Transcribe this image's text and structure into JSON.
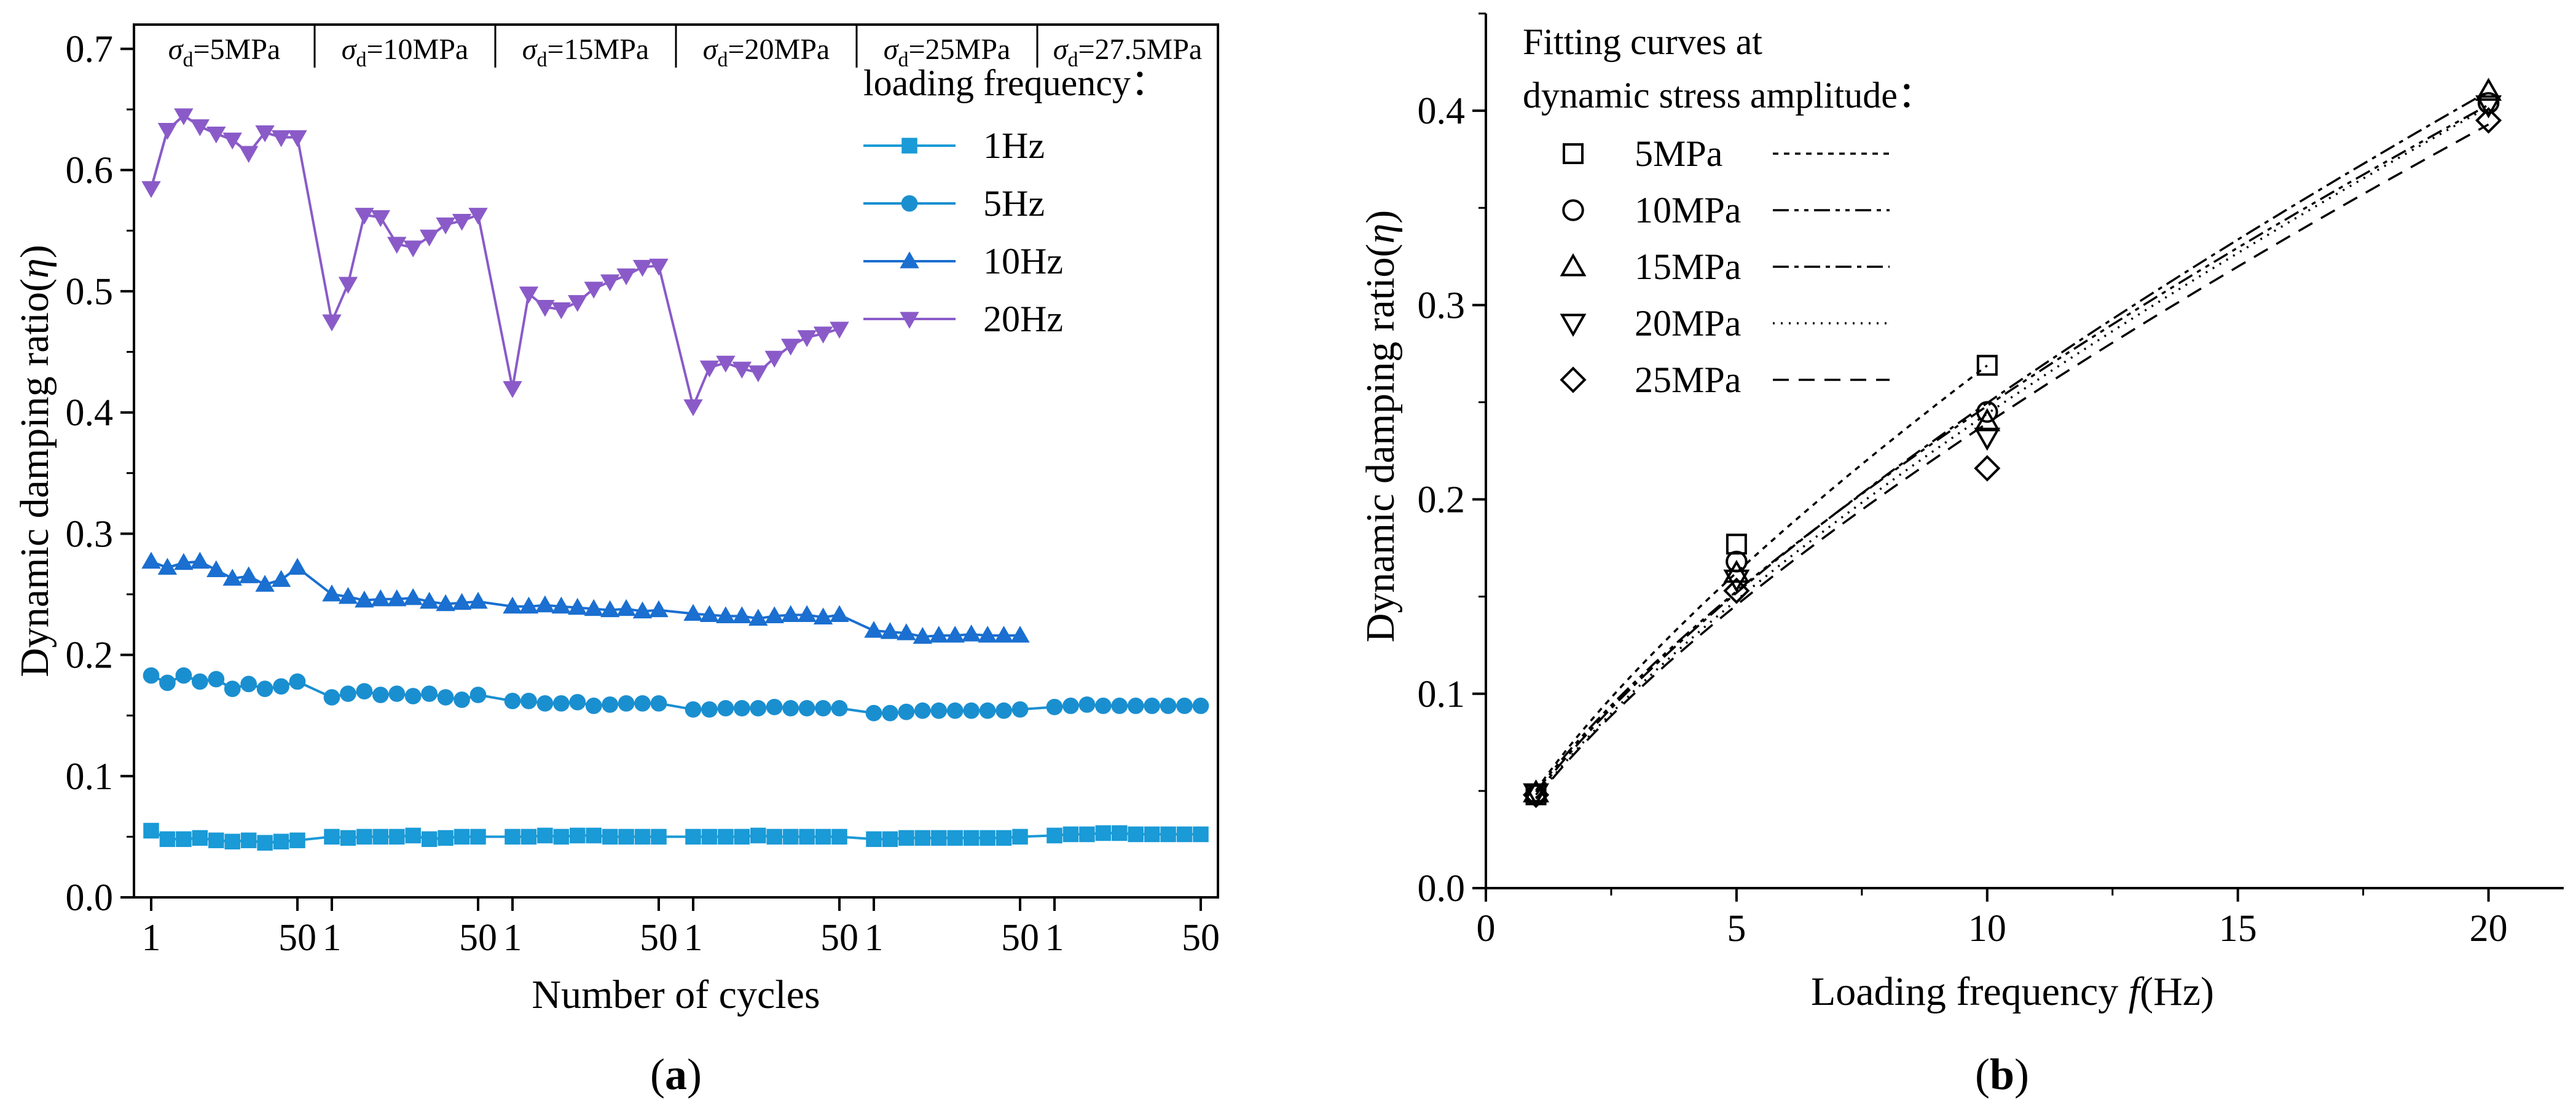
{
  "chart_data": [
    {
      "type": "line",
      "panel_label": "a",
      "xlabel": "Number of cycles",
      "ylabel": "Dynamic damping ratio(",
      "ylabel_symbol": "η",
      "ylabel_close": ")",
      "ylim": [
        0.0,
        0.72
      ],
      "y_ticks": [
        "0.0",
        "0.1",
        "0.2",
        "0.3",
        "0.4",
        "0.5",
        "0.6",
        "0.7"
      ],
      "grid": false,
      "legend_title": "loading frequency：",
      "legend_position": "top-right",
      "stages": [
        {
          "sym": "σ",
          "sub": "d",
          "rest": "=5MPa",
          "tick_start": "1",
          "tick_end": "50"
        },
        {
          "sym": "σ",
          "sub": "d",
          "rest": "=10MPa",
          "tick_start": "1",
          "tick_end": "50"
        },
        {
          "sym": "σ",
          "sub": "d",
          "rest": "=15MPa",
          "tick_start": "1",
          "tick_end": "50"
        },
        {
          "sym": "σ",
          "sub": "d",
          "rest": "=20MPa",
          "tick_start": "1",
          "tick_end": "50"
        },
        {
          "sym": "σ",
          "sub": "d",
          "rest": "=25MPa",
          "tick_start": "1",
          "tick_end": "50"
        },
        {
          "sym": "σ",
          "sub": "d",
          "rest": "=27.5MPa",
          "tick_start": "1",
          "tick_end": "50"
        }
      ],
      "series": [
        {
          "name": "1Hz",
          "marker": "square",
          "color": "#1a9ad6",
          "stage_values": [
            [
              0.055,
              0.048,
              0.048,
              0.049,
              0.047,
              0.046,
              0.047,
              0.045,
              0.046,
              0.047
            ],
            [
              0.05,
              0.049,
              0.05,
              0.05,
              0.05,
              0.051,
              0.048,
              0.049,
              0.05,
              0.05
            ],
            [
              0.05,
              0.05,
              0.051,
              0.05,
              0.051,
              0.051,
              0.05,
              0.05,
              0.05,
              0.05
            ],
            [
              0.05,
              0.05,
              0.05,
              0.05,
              0.051,
              0.05,
              0.05,
              0.05,
              0.05,
              0.05
            ],
            [
              0.048,
              0.048,
              0.049,
              0.049,
              0.049,
              0.049,
              0.049,
              0.049,
              0.049,
              0.05
            ],
            [
              0.051,
              0.052,
              0.052,
              0.053,
              0.053,
              0.052,
              0.052,
              0.052,
              0.052,
              0.052
            ]
          ]
        },
        {
          "name": "5Hz",
          "marker": "circle",
          "color": "#1a8fd0",
          "stage_values": [
            [
              0.183,
              0.177,
              0.183,
              0.178,
              0.18,
              0.172,
              0.176,
              0.172,
              0.174,
              0.178
            ],
            [
              0.165,
              0.168,
              0.17,
              0.167,
              0.168,
              0.166,
              0.168,
              0.165,
              0.163,
              0.167
            ],
            [
              0.162,
              0.162,
              0.16,
              0.16,
              0.161,
              0.158,
              0.159,
              0.16,
              0.16,
              0.16
            ],
            [
              0.155,
              0.155,
              0.156,
              0.156,
              0.156,
              0.157,
              0.156,
              0.156,
              0.156,
              0.156
            ],
            [
              0.152,
              0.152,
              0.153,
              0.154,
              0.154,
              0.154,
              0.154,
              0.154,
              0.154,
              0.155
            ],
            [
              0.157,
              0.158,
              0.159,
              0.158,
              0.158,
              0.158,
              0.158,
              0.158,
              0.158,
              0.158
            ]
          ]
        },
        {
          "name": "10Hz",
          "marker": "triangle-up",
          "color": "#1a6fd0",
          "stage_values": [
            [
              0.277,
              0.272,
              0.276,
              0.277,
              0.27,
              0.263,
              0.265,
              0.258,
              0.262,
              0.272
            ],
            [
              0.25,
              0.248,
              0.245,
              0.246,
              0.246,
              0.247,
              0.244,
              0.242,
              0.243,
              0.244
            ],
            [
              0.24,
              0.24,
              0.241,
              0.24,
              0.239,
              0.238,
              0.237,
              0.238,
              0.236,
              0.237
            ],
            [
              0.234,
              0.233,
              0.232,
              0.232,
              0.23,
              0.232,
              0.233,
              0.233,
              0.231,
              0.233
            ],
            [
              0.22,
              0.219,
              0.218,
              0.215,
              0.216,
              0.216,
              0.217,
              0.216,
              0.216,
              0.216
            ]
          ]
        },
        {
          "name": "20Hz",
          "marker": "triangle-down",
          "color": "#8a5bc8",
          "stage_values": [
            [
              0.585,
              0.633,
              0.645,
              0.636,
              0.63,
              0.625,
              0.614,
              0.631,
              0.627,
              0.627
            ],
            [
              0.475,
              0.506,
              0.563,
              0.561,
              0.539,
              0.536,
              0.545,
              0.555,
              0.558,
              0.563
            ],
            [
              0.42,
              0.498,
              0.487,
              0.485,
              0.491,
              0.502,
              0.508,
              0.513,
              0.52,
              0.521
            ],
            [
              0.405,
              0.437,
              0.441,
              0.436,
              0.433,
              0.445,
              0.455,
              0.462,
              0.465,
              0.469
            ]
          ]
        }
      ]
    },
    {
      "type": "scatter",
      "panel_label": "b",
      "xlabel_text": "Loading frequency ",
      "xlabel_symbol": "f",
      "xlabel_unit": "(Hz)",
      "ylabel": "Dynamic damping ratio(",
      "ylabel_symbol": "η",
      "ylabel_close": ")",
      "xlim": [
        0,
        21.5
      ],
      "ylim": [
        0.0,
        0.45
      ],
      "x_ticks": [
        0,
        5,
        10,
        15,
        20
      ],
      "y_ticks": [
        "0.0",
        "0.1",
        "0.2",
        "0.3",
        "0.4"
      ],
      "grid": false,
      "legend_title_line1": "Fitting curves at",
      "legend_title_line2": "dynamic stress amplitude：",
      "legend_position": "top-left",
      "series": [
        {
          "name": "5MPa",
          "marker": "square",
          "dash": "9,9",
          "x": [
            1,
            5,
            10
          ],
          "y": [
            0.048,
            0.177,
            0.269
          ],
          "fit_a": 0.0503,
          "fit_b": 0.728
        },
        {
          "name": "10MPa",
          "marker": "circle",
          "dash": "26,9,7,9,7,9",
          "x": [
            1,
            5,
            10,
            20
          ],
          "y": [
            0.048,
            0.168,
            0.245,
            0.404
          ],
          "fit_a": 0.0495,
          "fit_b": 0.7
        },
        {
          "name": "15MPa",
          "marker": "triangle-up",
          "dash": "26,9,7,9",
          "x": [
            1,
            5,
            10,
            20
          ],
          "y": [
            0.049,
            0.162,
            0.24,
            0.41
          ],
          "fit_a": 0.048,
          "fit_b": 0.716
        },
        {
          "name": "20MPa",
          "marker": "triangle-down",
          "dash": "3,10",
          "x": [
            1,
            5,
            10,
            20
          ],
          "y": [
            0.049,
            0.159,
            0.232,
            0.403
          ],
          "fit_a": 0.0465,
          "fit_b": 0.72
        },
        {
          "name": "25MPa",
          "marker": "diamond",
          "dash": "26,16",
          "x": [
            1,
            5,
            10,
            20
          ],
          "y": [
            0.048,
            0.153,
            0.216,
            0.395
          ],
          "fit_a": 0.046,
          "fit_b": 0.716
        }
      ]
    }
  ]
}
